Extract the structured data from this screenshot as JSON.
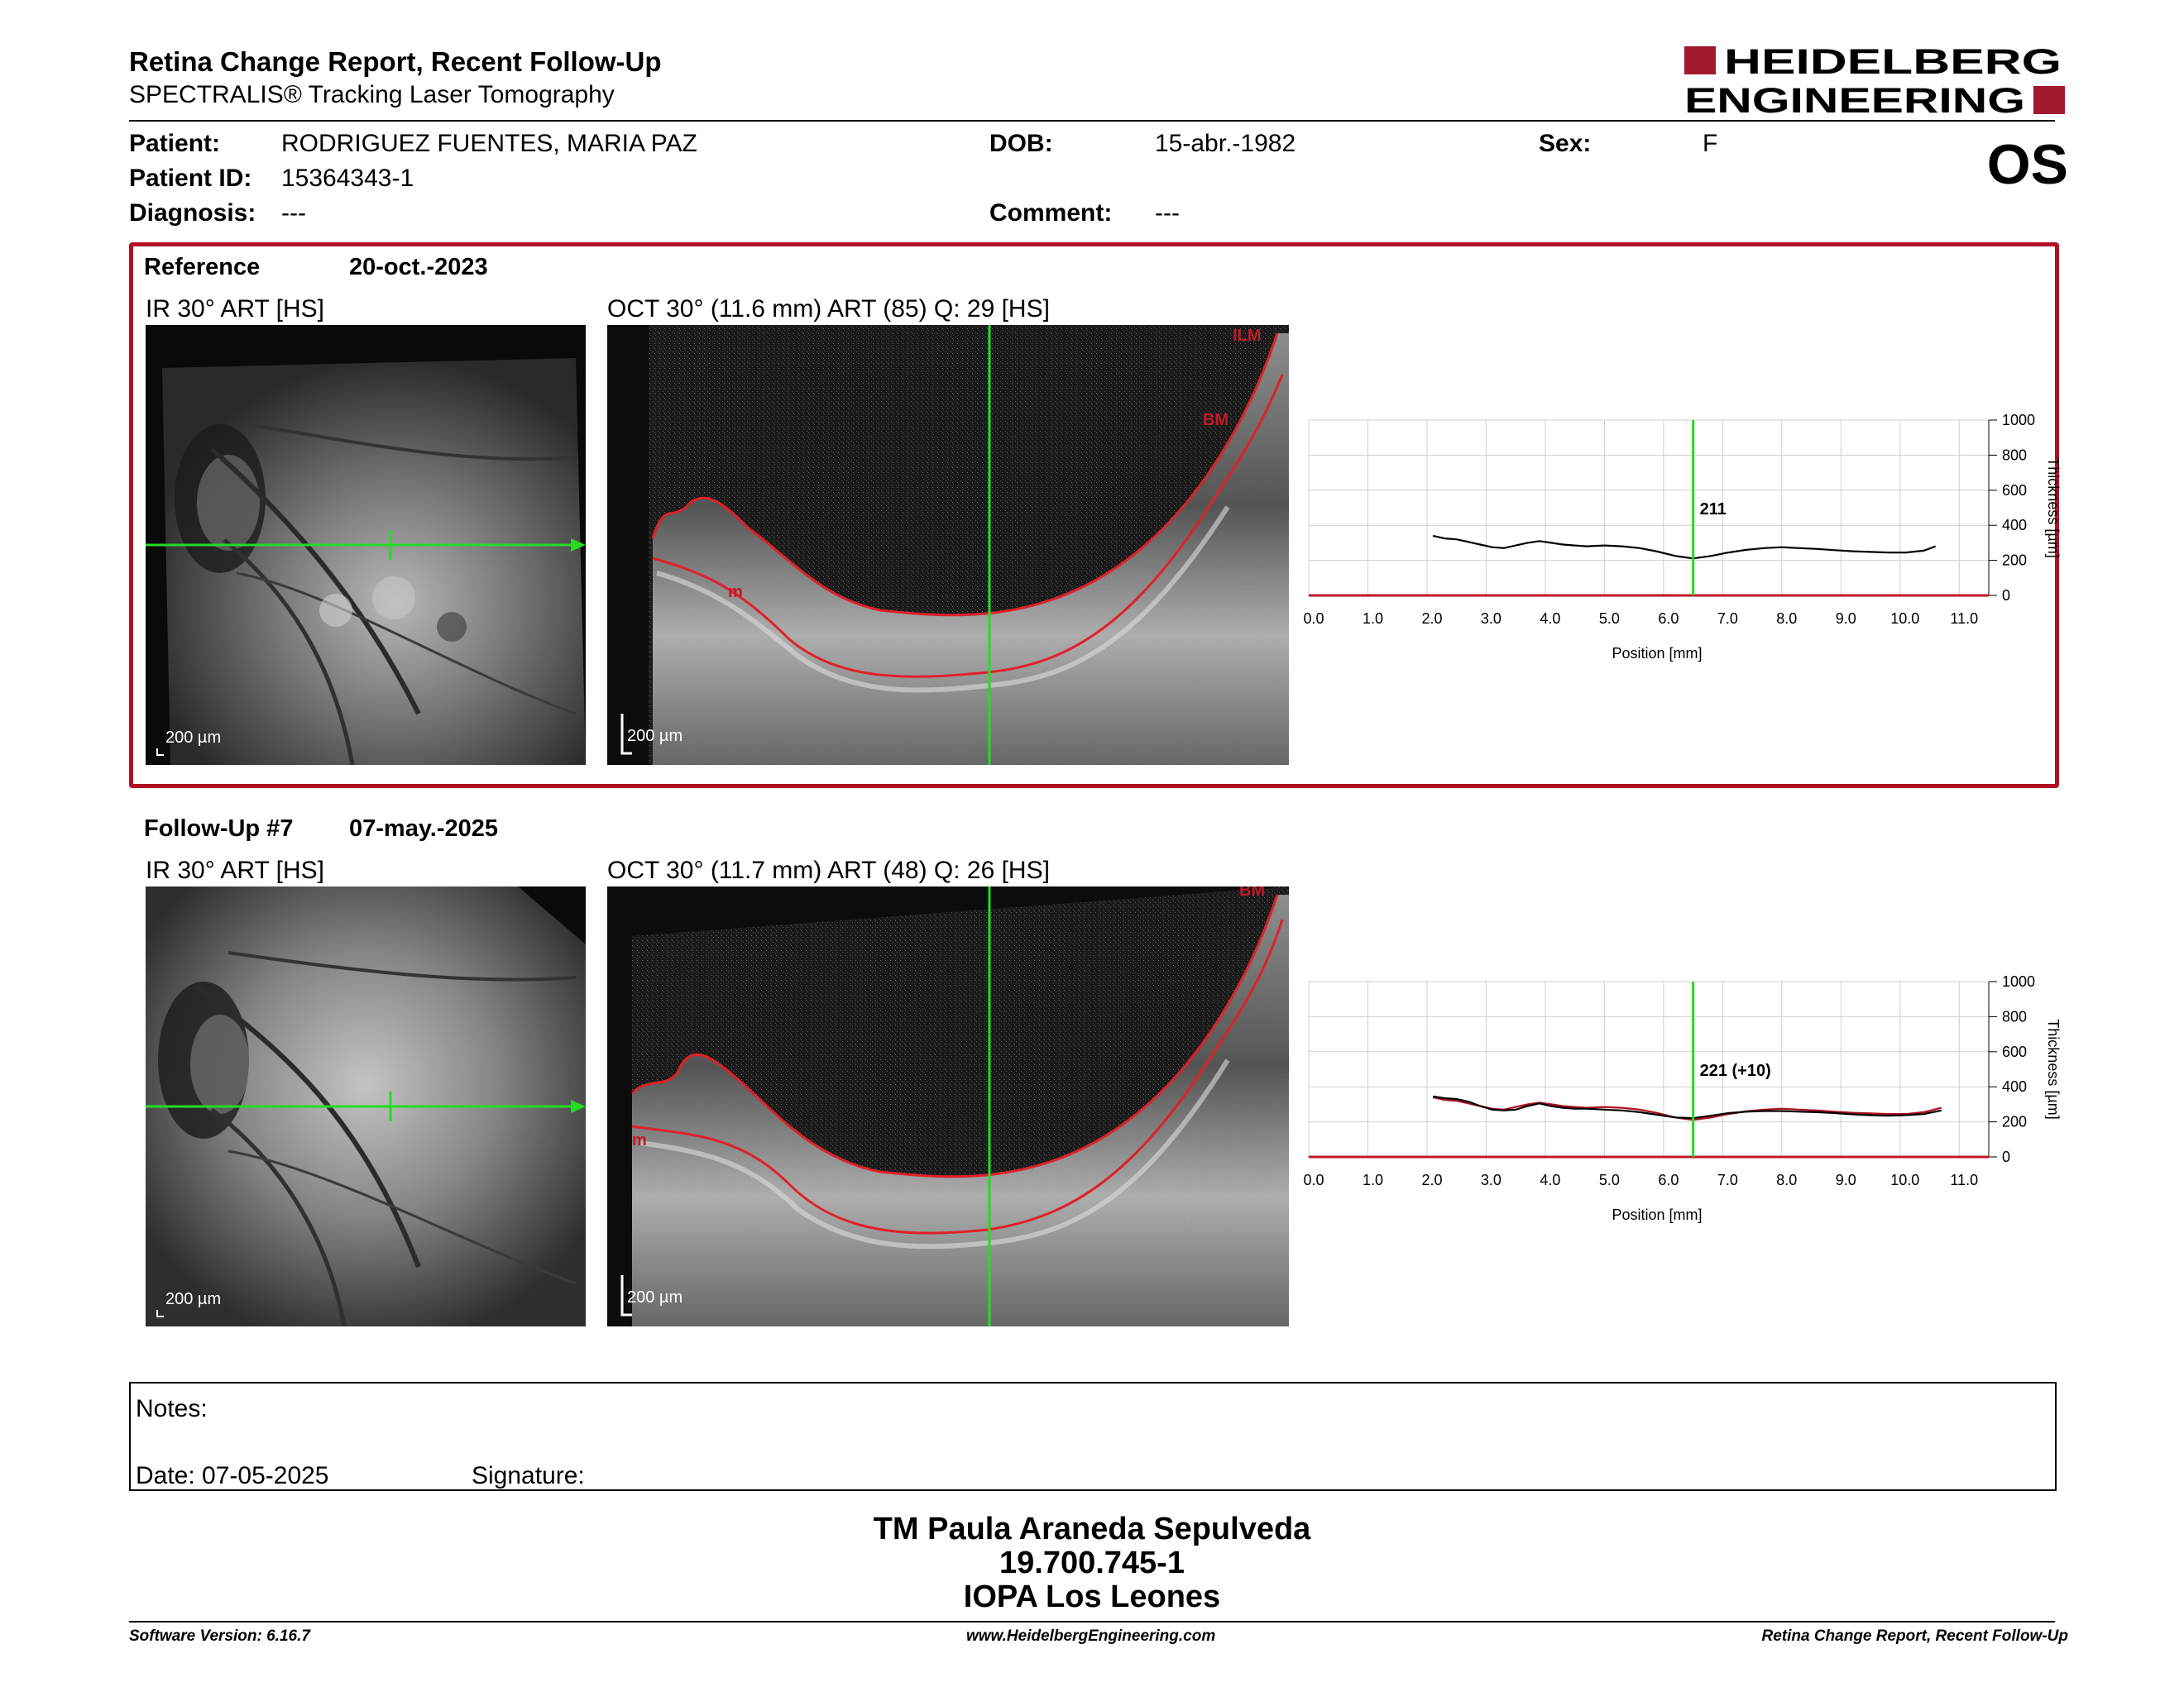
{
  "header": {
    "title": "Retina Change Report, Recent Follow-Up",
    "subtitle": "SPECTRALIS® Tracking Laser Tomography",
    "logo_line1": "HEIDELBERG",
    "logo_line2": "ENGINEERING",
    "brand_color": "#a0192d"
  },
  "patient": {
    "patient_label": "Patient:",
    "patient_name": "RODRIGUEZ FUENTES, MARIA PAZ",
    "dob_label": "DOB:",
    "dob": "15-abr.-1982",
    "sex_label": "Sex:",
    "sex": "F",
    "id_label": "Patient ID:",
    "id": "15364343-1",
    "diagnosis_label": "Diagnosis:",
    "diagnosis": "---",
    "comment_label": "Comment:",
    "comment": "---",
    "eye": "OS"
  },
  "reference": {
    "label": "Reference",
    "date": "20-oct.-2023",
    "ir_title": "IR 30° ART [HS]",
    "oct_title": "OCT 30° (11.6 mm) ART (85) Q: 29 [HS]",
    "scale_ir": "200 µm",
    "scale_oct": "200 µm",
    "layer_ilm": "ILM",
    "layer_bm": "BM",
    "layer_m": "m"
  },
  "followup": {
    "label": "Follow-Up #7",
    "date": "07-may.-2025",
    "ir_title": "IR 30° ART [HS]",
    "oct_title": "OCT 30° (11.7 mm) ART (48) Q: 26 [HS]",
    "scale_ir": "200 µm",
    "scale_oct": "200 µm",
    "layer_bm": "BM",
    "layer_m": "m"
  },
  "chart_data": [
    {
      "type": "line",
      "xlabel": "Position [mm]",
      "ylabel": "Thickness [µm]",
      "xlim": [
        0,
        11.5
      ],
      "ylim": [
        0,
        1000
      ],
      "x_ticks": [
        "0.0",
        "1.0",
        "2.0",
        "3.0",
        "4.0",
        "5.0",
        "6.0",
        "7.0",
        "8.0",
        "9.0",
        "10.0",
        "11.0"
      ],
      "y_ticks": [
        "0",
        "200",
        "400",
        "600",
        "800",
        "1000"
      ],
      "cursor_x": 6.5,
      "cursor_label": "211",
      "grid": true,
      "series": [
        {
          "x": [
            2.1,
            2.3,
            2.5,
            2.7,
            2.9,
            3.1,
            3.3,
            3.5,
            3.7,
            3.9,
            4.1,
            4.3,
            4.5,
            4.7,
            5.0,
            5.3,
            5.6,
            5.9,
            6.2,
            6.5,
            6.8,
            7.1,
            7.4,
            7.7,
            8.0,
            8.3,
            8.6,
            8.9,
            9.2,
            9.5,
            9.8,
            10.1,
            10.4,
            10.6
          ],
          "y": [
            340,
            325,
            320,
            305,
            290,
            275,
            270,
            285,
            300,
            310,
            300,
            290,
            285,
            280,
            285,
            280,
            270,
            250,
            225,
            211,
            225,
            245,
            260,
            270,
            275,
            270,
            265,
            258,
            252,
            248,
            245,
            245,
            255,
            280
          ],
          "color": "#000000"
        }
      ]
    },
    {
      "type": "line",
      "xlabel": "Position [mm]",
      "ylabel": "Thickness [µm]",
      "xlim": [
        0,
        11.5
      ],
      "ylim": [
        0,
        1000
      ],
      "x_ticks": [
        "0.0",
        "1.0",
        "2.0",
        "3.0",
        "4.0",
        "5.0",
        "6.0",
        "7.0",
        "8.0",
        "9.0",
        "10.0",
        "11.0"
      ],
      "y_ticks": [
        "0",
        "200",
        "400",
        "600",
        "800",
        "1000"
      ],
      "cursor_x": 6.5,
      "cursor_label": "221 (+10)",
      "grid": true,
      "series": [
        {
          "x": [
            2.1,
            2.3,
            2.5,
            2.7,
            2.9,
            3.1,
            3.3,
            3.5,
            3.7,
            3.9,
            4.1,
            4.3,
            4.5,
            4.7,
            5.0,
            5.3,
            5.6,
            5.9,
            6.2,
            6.5,
            6.8,
            7.1,
            7.4,
            7.7,
            8.0,
            8.3,
            8.6,
            8.9,
            9.2,
            9.5,
            9.8,
            10.1,
            10.4,
            10.7
          ],
          "y": [
            345,
            335,
            330,
            315,
            290,
            270,
            265,
            270,
            290,
            305,
            290,
            280,
            275,
            275,
            270,
            265,
            255,
            240,
            225,
            221,
            235,
            250,
            258,
            262,
            262,
            258,
            255,
            250,
            243,
            238,
            235,
            238,
            245,
            265
          ],
          "color": "#000000"
        },
        {
          "x": [
            2.1,
            2.3,
            2.5,
            2.7,
            2.9,
            3.1,
            3.3,
            3.5,
            3.7,
            3.9,
            4.1,
            4.3,
            4.5,
            4.7,
            5.0,
            5.3,
            5.6,
            5.9,
            6.2,
            6.5,
            6.8,
            7.1,
            7.4,
            7.7,
            8.0,
            8.3,
            8.6,
            8.9,
            9.2,
            9.5,
            9.8,
            10.1,
            10.4,
            10.7
          ],
          "y": [
            340,
            325,
            320,
            305,
            290,
            275,
            270,
            285,
            300,
            310,
            300,
            290,
            285,
            280,
            285,
            280,
            270,
            250,
            225,
            211,
            225,
            245,
            260,
            270,
            275,
            270,
            265,
            258,
            252,
            248,
            245,
            245,
            255,
            280
          ],
          "color": "#b01022"
        }
      ]
    }
  ],
  "notes": {
    "notes_label": "Notes:",
    "date_label": "Date: 07-05-2025",
    "signature_label": "Signature:"
  },
  "signatory": {
    "name": "TM Paula Araneda Sepulveda",
    "rut": "19.700.745-1",
    "institution": "IOPA Los Leones"
  },
  "footer": {
    "software": "Software Version: 6.16.7",
    "website": "www.HeidelbergEngineering.com",
    "report_name": "Retina Change Report, Recent Follow-Up"
  }
}
